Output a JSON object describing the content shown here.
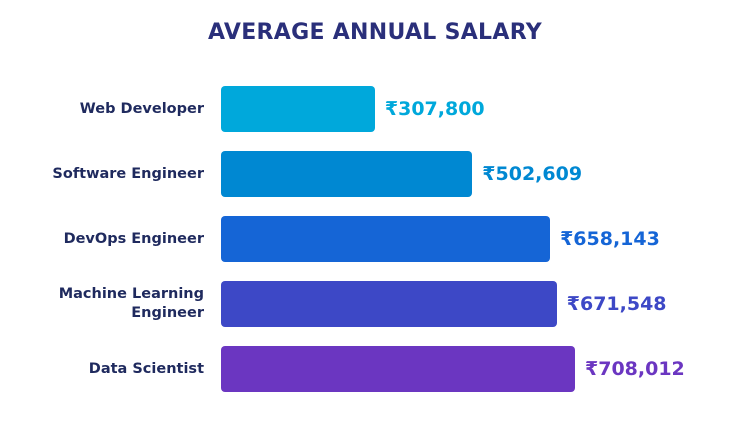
{
  "chart_data": {
    "type": "bar",
    "orientation": "horizontal",
    "title": "AVERAGE ANNUAL SALARY",
    "categories": [
      "Web Developer",
      "Software Engineer",
      "DevOps Engineer",
      "Machine Learning Engineer",
      "Data Scientist"
    ],
    "values": [
      307800,
      502609,
      658143,
      671548,
      708012
    ],
    "value_labels": [
      "₹307,800",
      "₹502,609",
      "₹658,143",
      "₹671,548",
      "₹708,012"
    ],
    "colors": [
      "#00a8db",
      "#0088d2",
      "#1565d6",
      "#3d48c6",
      "#6b36c1"
    ]
  }
}
